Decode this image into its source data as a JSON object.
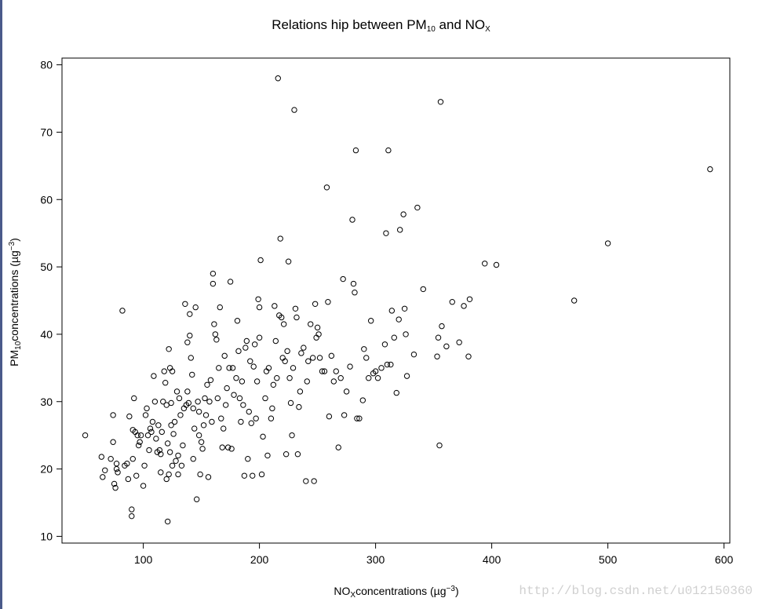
{
  "chart_data": {
    "type": "scatter",
    "title": {
      "pre": "Relations hip between PM",
      "sub1": "10",
      "mid": " and NO",
      "sub2": "X"
    },
    "xlabel": {
      "pre": "NO",
      "sub": "X",
      "post": "concentrations (µg",
      "sup": "−3",
      "end": ")"
    },
    "ylabel": {
      "pre": "PM",
      "sub": "10",
      "post": "concentrations (µg",
      "sup": "−3",
      "end": ")"
    },
    "xlim": [
      30,
      605
    ],
    "ylim": [
      9,
      81
    ],
    "xticks": [
      100,
      200,
      300,
      400,
      500,
      600
    ],
    "yticks": [
      10,
      20,
      30,
      40,
      50,
      60,
      70,
      80
    ],
    "marker": "open-circle",
    "points": [
      [
        50,
        25
      ],
      [
        64,
        21.8
      ],
      [
        65,
        18.8
      ],
      [
        67,
        19.8
      ],
      [
        72,
        21.5
      ],
      [
        74,
        28
      ],
      [
        74,
        24
      ],
      [
        75,
        17.8
      ],
      [
        76,
        17.2
      ],
      [
        77,
        20.8
      ],
      [
        77,
        20
      ],
      [
        78,
        19.5
      ],
      [
        82,
        43.5
      ],
      [
        84,
        20.5
      ],
      [
        86,
        20.8
      ],
      [
        87,
        18.5
      ],
      [
        88,
        27.8
      ],
      [
        90,
        13
      ],
      [
        90,
        14
      ],
      [
        91,
        21.5
      ],
      [
        91,
        25.8
      ],
      [
        92,
        30.5
      ],
      [
        93,
        25.5
      ],
      [
        94,
        19
      ],
      [
        95,
        25
      ],
      [
        96,
        23.5
      ],
      [
        97,
        24
      ],
      [
        98,
        25
      ],
      [
        100,
        17.5
      ],
      [
        101,
        20.5
      ],
      [
        102,
        28
      ],
      [
        103,
        29
      ],
      [
        104,
        25
      ],
      [
        105,
        22.8
      ],
      [
        106,
        26
      ],
      [
        107,
        25.5
      ],
      [
        108,
        27
      ],
      [
        109,
        33.8
      ],
      [
        110,
        30
      ],
      [
        111,
        24.5
      ],
      [
        112,
        22.5
      ],
      [
        113,
        26.5
      ],
      [
        114,
        22.8
      ],
      [
        115,
        19.5
      ],
      [
        115,
        22.2
      ],
      [
        116,
        25.5
      ],
      [
        117,
        30
      ],
      [
        118,
        34.5
      ],
      [
        119,
        32.8
      ],
      [
        120,
        29.5
      ],
      [
        120,
        18.5
      ],
      [
        121,
        23.8
      ],
      [
        121,
        12.2
      ],
      [
        122,
        37.8
      ],
      [
        122,
        19.2
      ],
      [
        123,
        35
      ],
      [
        123,
        22.5
      ],
      [
        124,
        29.8
      ],
      [
        124,
        26.5
      ],
      [
        125,
        20.5
      ],
      [
        125,
        34.5
      ],
      [
        126,
        25.2
      ],
      [
        127,
        27
      ],
      [
        128,
        21.2
      ],
      [
        129,
        31.5
      ],
      [
        130,
        22
      ],
      [
        130,
        19.2
      ],
      [
        131,
        30.5
      ],
      [
        132,
        28
      ],
      [
        133,
        20.5
      ],
      [
        134,
        23.5
      ],
      [
        135,
        29
      ],
      [
        136,
        44.5
      ],
      [
        137,
        29.5
      ],
      [
        138,
        38.8
      ],
      [
        138,
        31.5
      ],
      [
        139,
        29.8
      ],
      [
        140,
        43
      ],
      [
        140,
        39.8
      ],
      [
        141,
        36.5
      ],
      [
        142,
        34
      ],
      [
        143,
        29
      ],
      [
        143,
        21.5
      ],
      [
        144,
        26
      ],
      [
        145,
        44
      ],
      [
        146,
        15.5
      ],
      [
        147,
        30
      ],
      [
        148,
        25
      ],
      [
        148,
        28.5
      ],
      [
        149,
        19.2
      ],
      [
        150,
        24
      ],
      [
        151,
        23
      ],
      [
        152,
        26.5
      ],
      [
        153,
        30.5
      ],
      [
        154,
        28
      ],
      [
        155,
        32.5
      ],
      [
        156,
        18.8
      ],
      [
        157,
        30
      ],
      [
        158,
        33.2
      ],
      [
        159,
        27
      ],
      [
        160,
        49
      ],
      [
        160,
        47.5
      ],
      [
        161,
        41.5
      ],
      [
        162,
        40
      ],
      [
        163,
        39.2
      ],
      [
        164,
        30.5
      ],
      [
        165,
        35
      ],
      [
        166,
        44
      ],
      [
        167,
        27.5
      ],
      [
        168,
        23.2
      ],
      [
        169,
        26
      ],
      [
        170,
        36.8
      ],
      [
        171,
        29.5
      ],
      [
        172,
        32
      ],
      [
        173,
        23.2
      ],
      [
        174,
        35
      ],
      [
        175,
        47.8
      ],
      [
        176,
        23
      ],
      [
        177,
        35
      ],
      [
        178,
        31
      ],
      [
        180,
        33.5
      ],
      [
        181,
        42
      ],
      [
        182,
        37.5
      ],
      [
        183,
        30.5
      ],
      [
        184,
        27
      ],
      [
        185,
        33
      ],
      [
        186,
        29.5
      ],
      [
        187,
        19
      ],
      [
        188,
        38
      ],
      [
        189,
        39
      ],
      [
        190,
        21.5
      ],
      [
        191,
        28.5
      ],
      [
        192,
        36
      ],
      [
        193,
        26.8
      ],
      [
        194,
        19
      ],
      [
        195,
        35.2
      ],
      [
        196,
        38.5
      ],
      [
        197,
        27.5
      ],
      [
        198,
        33
      ],
      [
        199,
        45.2
      ],
      [
        200,
        44
      ],
      [
        200,
        39.5
      ],
      [
        201,
        51
      ],
      [
        202,
        19.2
      ],
      [
        203,
        24.8
      ],
      [
        205,
        30.5
      ],
      [
        206,
        34.5
      ],
      [
        207,
        22
      ],
      [
        208,
        35
      ],
      [
        210,
        27.5
      ],
      [
        211,
        29
      ],
      [
        212,
        32.5
      ],
      [
        213,
        44.2
      ],
      [
        214,
        39
      ],
      [
        215,
        33.5
      ],
      [
        216,
        78
      ],
      [
        217,
        42.8
      ],
      [
        218,
        54.2
      ],
      [
        219,
        42.5
      ],
      [
        220,
        36.5
      ],
      [
        221,
        41.5
      ],
      [
        222,
        36
      ],
      [
        223,
        22.2
      ],
      [
        224,
        37.5
      ],
      [
        225,
        50.8
      ],
      [
        226,
        33.5
      ],
      [
        227,
        29.8
      ],
      [
        228,
        25
      ],
      [
        229,
        35
      ],
      [
        230,
        73.3
      ],
      [
        231,
        43.8
      ],
      [
        232,
        42.5
      ],
      [
        233,
        22.2
      ],
      [
        234,
        29.2
      ],
      [
        235,
        31.5
      ],
      [
        236,
        37.2
      ],
      [
        238,
        38
      ],
      [
        240,
        18.2
      ],
      [
        241,
        33
      ],
      [
        242,
        36
      ],
      [
        244,
        41.5
      ],
      [
        246,
        36.5
      ],
      [
        247,
        18.2
      ],
      [
        248,
        44.5
      ],
      [
        249,
        39.5
      ],
      [
        250,
        41
      ],
      [
        251,
        40
      ],
      [
        252,
        36.5
      ],
      [
        254,
        34.5
      ],
      [
        256,
        34.5
      ],
      [
        258,
        61.8
      ],
      [
        259,
        44.8
      ],
      [
        260,
        27.8
      ],
      [
        262,
        36.8
      ],
      [
        264,
        33
      ],
      [
        266,
        34.5
      ],
      [
        268,
        23.2
      ],
      [
        270,
        33.5
      ],
      [
        272,
        48.2
      ],
      [
        273,
        28
      ],
      [
        275,
        31.5
      ],
      [
        278,
        35.2
      ],
      [
        280,
        57
      ],
      [
        281,
        47.5
      ],
      [
        282,
        46.2
      ],
      [
        283,
        67.3
      ],
      [
        284,
        27.5
      ],
      [
        286,
        27.5
      ],
      [
        289,
        30.2
      ],
      [
        290,
        37.8
      ],
      [
        292,
        36.5
      ],
      [
        294,
        33.5
      ],
      [
        296,
        42
      ],
      [
        298,
        34.2
      ],
      [
        300,
        34.5
      ],
      [
        302,
        33.5
      ],
      [
        305,
        35
      ],
      [
        308,
        38.5
      ],
      [
        309,
        55
      ],
      [
        310,
        35.5
      ],
      [
        311,
        67.3
      ],
      [
        313,
        35.5
      ],
      [
        314,
        43.5
      ],
      [
        316,
        39.5
      ],
      [
        318,
        31.3
      ],
      [
        320,
        42.2
      ],
      [
        321,
        55.5
      ],
      [
        324,
        57.8
      ],
      [
        325,
        43.8
      ],
      [
        326,
        40
      ],
      [
        327,
        33.8
      ],
      [
        333,
        37
      ],
      [
        336,
        58.8
      ],
      [
        341,
        46.7
      ],
      [
        353,
        36.7
      ],
      [
        354,
        39.5
      ],
      [
        355,
        23.5
      ],
      [
        356,
        74.5
      ],
      [
        357,
        41.2
      ],
      [
        361,
        38.2
      ],
      [
        366,
        44.8
      ],
      [
        372,
        38.8
      ],
      [
        376,
        44.2
      ],
      [
        380,
        36.7
      ],
      [
        381,
        45.2
      ],
      [
        394,
        50.5
      ],
      [
        404,
        50.3
      ],
      [
        471,
        45
      ],
      [
        500,
        53.5
      ],
      [
        588,
        64.5
      ]
    ]
  },
  "watermark": "http://blog.csdn.net/u012150360"
}
